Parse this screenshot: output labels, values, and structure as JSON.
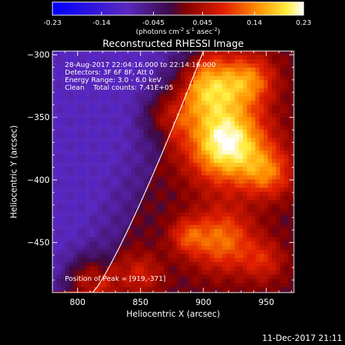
{
  "chart_data": {
    "type": "heatmap",
    "title": "Reconstructed RHESSI Image",
    "xlabel": "Heliocentric X (arcsec)",
    "ylabel": "Heliocentric Y (arcsec)",
    "xlim": [
      780,
      972
    ],
    "ylim": [
      -490,
      -297
    ],
    "x_ticks": [
      800,
      850,
      900,
      950
    ],
    "y_ticks": [
      -300,
      -350,
      -400,
      -450
    ],
    "colorbar": {
      "min": -0.23,
      "max": 0.23,
      "ticks": [
        "-0.23",
        "-0.14",
        "-0.045",
        "0.045",
        "0.14",
        "0.23"
      ],
      "unit_label": "(photons cm",
      "unit_exp1": "-2",
      "unit_mid1": " s",
      "unit_exp2": "-1",
      "unit_mid2": " asec",
      "unit_exp3": "-2",
      "unit_end": ")"
    },
    "annotations": [
      "28-Aug-2017 22:04:16.000 to 22:14:16.000",
      "Detectors: 3F 6F 8F, Att 0",
      "Energy Range: 3.0 - 6.0 keV",
      "Clean    Total counts: 7.41E+05"
    ],
    "peak_label": "Position of Peak = [919,-371]",
    "peak": [
      919,
      -371
    ],
    "sources": [
      {
        "x": 919,
        "y": -371,
        "sigma": 22,
        "amp": 1.0
      },
      {
        "x": 905,
        "y": -325,
        "sigma": 18,
        "amp": 0.7
      },
      {
        "x": 938,
        "y": -320,
        "sigma": 14,
        "amp": 0.5
      },
      {
        "x": 870,
        "y": -348,
        "sigma": 14,
        "amp": 0.35
      },
      {
        "x": 952,
        "y": -395,
        "sigma": 14,
        "amp": 0.45
      },
      {
        "x": 915,
        "y": -448,
        "sigma": 18,
        "amp": 0.55
      },
      {
        "x": 887,
        "y": -445,
        "sigma": 10,
        "amp": 0.35
      },
      {
        "x": 808,
        "y": -480,
        "sigma": 14,
        "amp": 0.45
      },
      {
        "x": 850,
        "y": -475,
        "sigma": 12,
        "amp": 0.3
      },
      {
        "x": 948,
        "y": -465,
        "sigma": 12,
        "amp": 0.3
      }
    ],
    "limb_arc": {
      "x_start": 812,
      "y_start": -490,
      "x_end": 900,
      "y_end": -297
    }
  },
  "footer": {
    "date": "11-Dec-2017 21:11"
  }
}
